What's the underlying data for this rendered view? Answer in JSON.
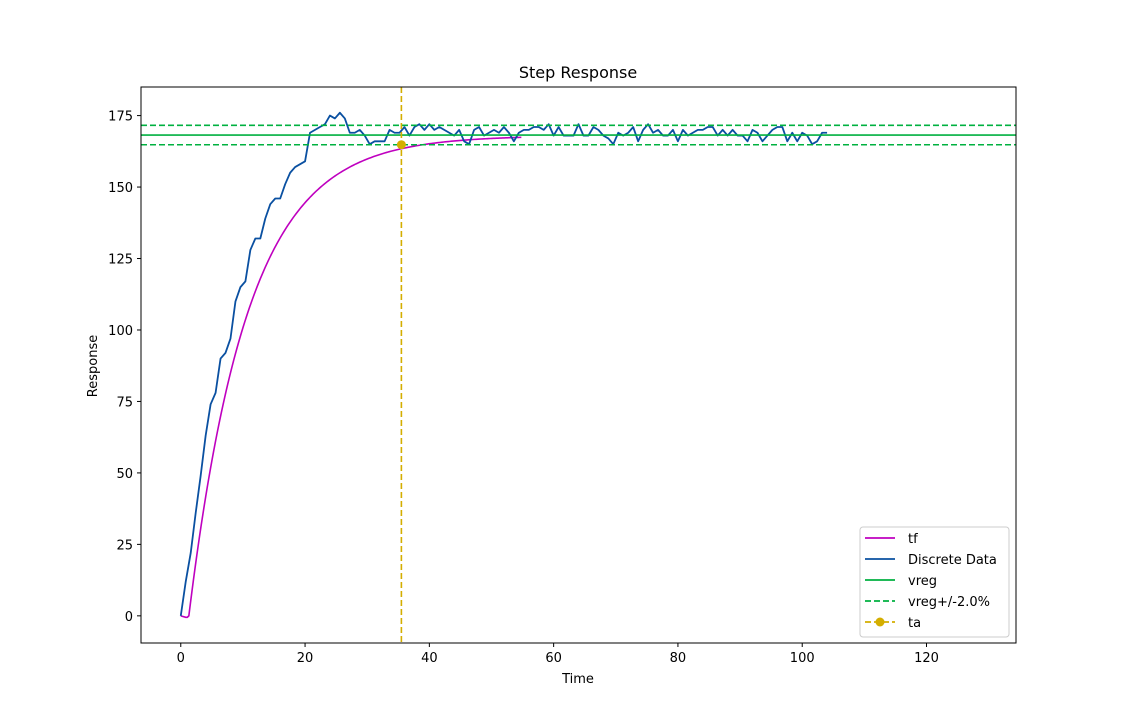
{
  "chart_data": {
    "type": "line",
    "title": "Step Response",
    "xlabel": "Time",
    "ylabel": "Response",
    "xlim": [
      -6.4,
      134.4
    ],
    "ylim": [
      -9.5,
      185
    ],
    "xticks": [
      0,
      20,
      40,
      60,
      80,
      100,
      120
    ],
    "yticks": [
      0,
      25,
      50,
      75,
      100,
      125,
      150,
      175
    ],
    "grid": false,
    "legend_position": "lower right",
    "colors": {
      "tf": "#bf00bf",
      "discrete": "#0a50a1",
      "vreg": "#00b140",
      "band": "#00b140",
      "ta": "#d4ae00"
    },
    "series": [
      {
        "name": "tf",
        "kind": "model",
        "gain": 168,
        "tau": 9.5,
        "delay": 1.3,
        "x_end": 55,
        "dip": [
          [
            0.0,
            0.0
          ],
          [
            0.8,
            -0.5
          ]
        ]
      },
      {
        "name": "Discrete Data",
        "kind": "data",
        "x_start": 0,
        "dt": 0.8,
        "values": [
          0,
          12,
          22,
          36,
          49,
          63,
          74,
          78,
          90,
          92,
          97,
          110,
          115,
          117,
          128,
          132,
          132,
          139,
          144,
          146,
          146,
          151,
          155,
          157,
          158,
          159,
          169,
          170,
          171,
          172,
          175,
          174,
          176,
          174,
          169,
          169,
          170,
          168,
          165,
          166,
          166,
          166,
          170,
          169,
          169,
          171,
          168,
          171,
          172,
          170,
          172,
          170,
          171,
          170,
          169,
          168,
          170,
          166,
          165,
          170,
          171,
          168,
          169,
          170,
          169,
          171,
          169,
          166,
          169,
          170,
          170,
          171,
          171,
          170,
          172,
          168,
          171,
          168,
          168,
          168,
          172,
          168,
          168,
          171,
          170,
          168,
          167,
          165,
          169,
          168,
          169,
          171,
          166,
          170,
          172,
          169,
          170,
          168,
          168,
          170,
          166,
          170,
          168,
          169,
          170,
          170,
          171,
          171,
          168,
          170,
          168,
          170,
          168,
          168,
          166,
          170,
          169,
          166,
          168,
          170,
          171,
          171,
          166,
          169,
          166,
          169,
          168,
          165,
          166,
          169,
          169
        ]
      },
      {
        "name": "vreg",
        "kind": "hline",
        "y": 168.2
      },
      {
        "name": "vreg+/-2.0%",
        "kind": "hband",
        "y_values": [
          164.8,
          171.6
        ]
      },
      {
        "name": "ta",
        "kind": "vline",
        "x": 35.5,
        "marker_y": 164.8
      }
    ],
    "legend": [
      "tf",
      "Discrete Data",
      "vreg",
      "vreg+/-2.0%",
      "ta"
    ]
  }
}
